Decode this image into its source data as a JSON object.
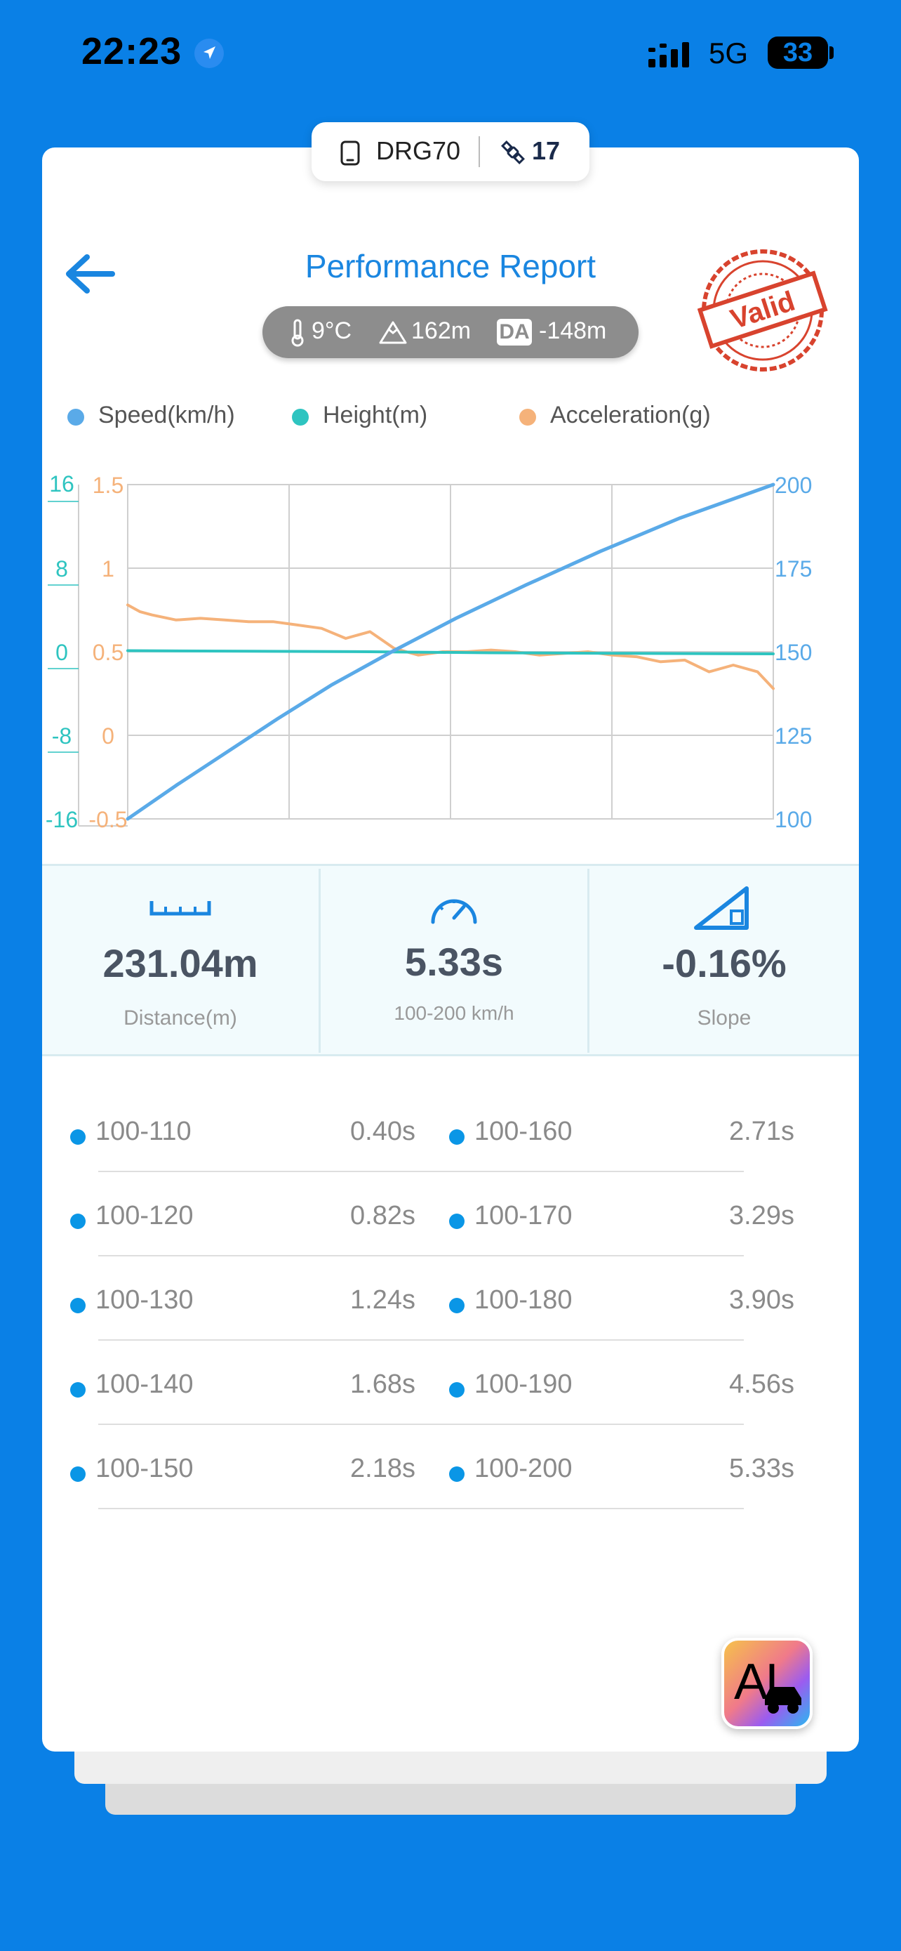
{
  "status": {
    "time": "22:23",
    "network": "5G",
    "battery": "33",
    "icons": [
      "location-arrow-icon",
      "signal-bars-icon",
      "battery-icon"
    ]
  },
  "device": {
    "name": "DRG70",
    "satellites": "17",
    "icons": [
      "phone-icon",
      "satellite-icon"
    ]
  },
  "header": {
    "title": "Performance Report",
    "temperature": "9°C",
    "altitude": "162m",
    "da_badge": "DA",
    "density_altitude": "-148m",
    "stamp": "Valid"
  },
  "legend": {
    "speed": "Speed(km/h)",
    "height": "Height(m)",
    "acceleration": "Acceleration(g)"
  },
  "colors": {
    "speed": "#5aaae8",
    "height": "#2ec4c0",
    "acceleration": "#f5b27a",
    "accent": "#1a86e0",
    "background": "#0a80e6"
  },
  "chart_data": {
    "type": "line",
    "grid": true,
    "axes": {
      "height_left": {
        "ticks": [
          "16",
          "8",
          "0",
          "-8",
          "-16"
        ],
        "range": [
          -16,
          16
        ]
      },
      "acceleration_left": {
        "ticks": [
          "1.5",
          "1",
          "0.5",
          "0",
          "-0.5"
        ],
        "range": [
          -0.5,
          1.5
        ]
      },
      "speed_right": {
        "ticks": [
          "200",
          "175",
          "150",
          "125",
          "100"
        ],
        "range": [
          100,
          200
        ]
      }
    },
    "x_range": [
      0,
      5.33
    ],
    "series": [
      {
        "name": "Speed(km/h)",
        "axis": "speed_right",
        "x": [
          0,
          0.4,
          0.82,
          1.24,
          1.68,
          2.18,
          2.71,
          3.29,
          3.9,
          4.56,
          5.33
        ],
        "y": [
          100,
          110,
          120,
          130,
          140,
          150,
          160,
          170,
          180,
          190,
          200
        ]
      },
      {
        "name": "Height(m)",
        "axis": "height_left",
        "x": [
          0,
          1.0,
          2.0,
          3.0,
          4.0,
          5.33
        ],
        "y": [
          0.1,
          0.05,
          0,
          -0.1,
          -0.15,
          -0.2
        ]
      },
      {
        "name": "Acceleration(g)",
        "axis": "acceleration_left",
        "x": [
          0,
          0.1,
          0.2,
          0.4,
          0.6,
          0.8,
          1.0,
          1.2,
          1.4,
          1.6,
          1.8,
          2.0,
          2.2,
          2.4,
          2.6,
          2.8,
          3.0,
          3.2,
          3.4,
          3.6,
          3.8,
          4.0,
          4.2,
          4.4,
          4.6,
          4.8,
          5.0,
          5.2,
          5.33
        ],
        "y": [
          0.78,
          0.74,
          0.72,
          0.69,
          0.7,
          0.69,
          0.68,
          0.68,
          0.66,
          0.64,
          0.58,
          0.62,
          0.52,
          0.48,
          0.5,
          0.5,
          0.51,
          0.5,
          0.48,
          0.49,
          0.5,
          0.48,
          0.47,
          0.44,
          0.45,
          0.38,
          0.42,
          0.38,
          0.28
        ]
      }
    ]
  },
  "stats": {
    "distance": {
      "value": "231.04m",
      "label": "Distance(m)",
      "icon": "ruler-icon"
    },
    "time": {
      "value": "5.33s",
      "label": "100-200 km/h",
      "icon": "speedometer-icon"
    },
    "slope": {
      "value": "-0.16%",
      "label": "Slope",
      "icon": "slope-icon"
    }
  },
  "splits": {
    "left": [
      {
        "range": "100-110",
        "time": "0.40s"
      },
      {
        "range": "100-120",
        "time": "0.82s"
      },
      {
        "range": "100-130",
        "time": "1.24s"
      },
      {
        "range": "100-140",
        "time": "1.68s"
      },
      {
        "range": "100-150",
        "time": "2.18s"
      }
    ],
    "right": [
      {
        "range": "100-160",
        "time": "2.71s"
      },
      {
        "range": "100-170",
        "time": "3.29s"
      },
      {
        "range": "100-180",
        "time": "3.90s"
      },
      {
        "range": "100-190",
        "time": "4.56s"
      },
      {
        "range": "100-200",
        "time": "5.33s"
      }
    ]
  },
  "ai_button": {
    "label": "AI",
    "icon": "car-icon"
  }
}
